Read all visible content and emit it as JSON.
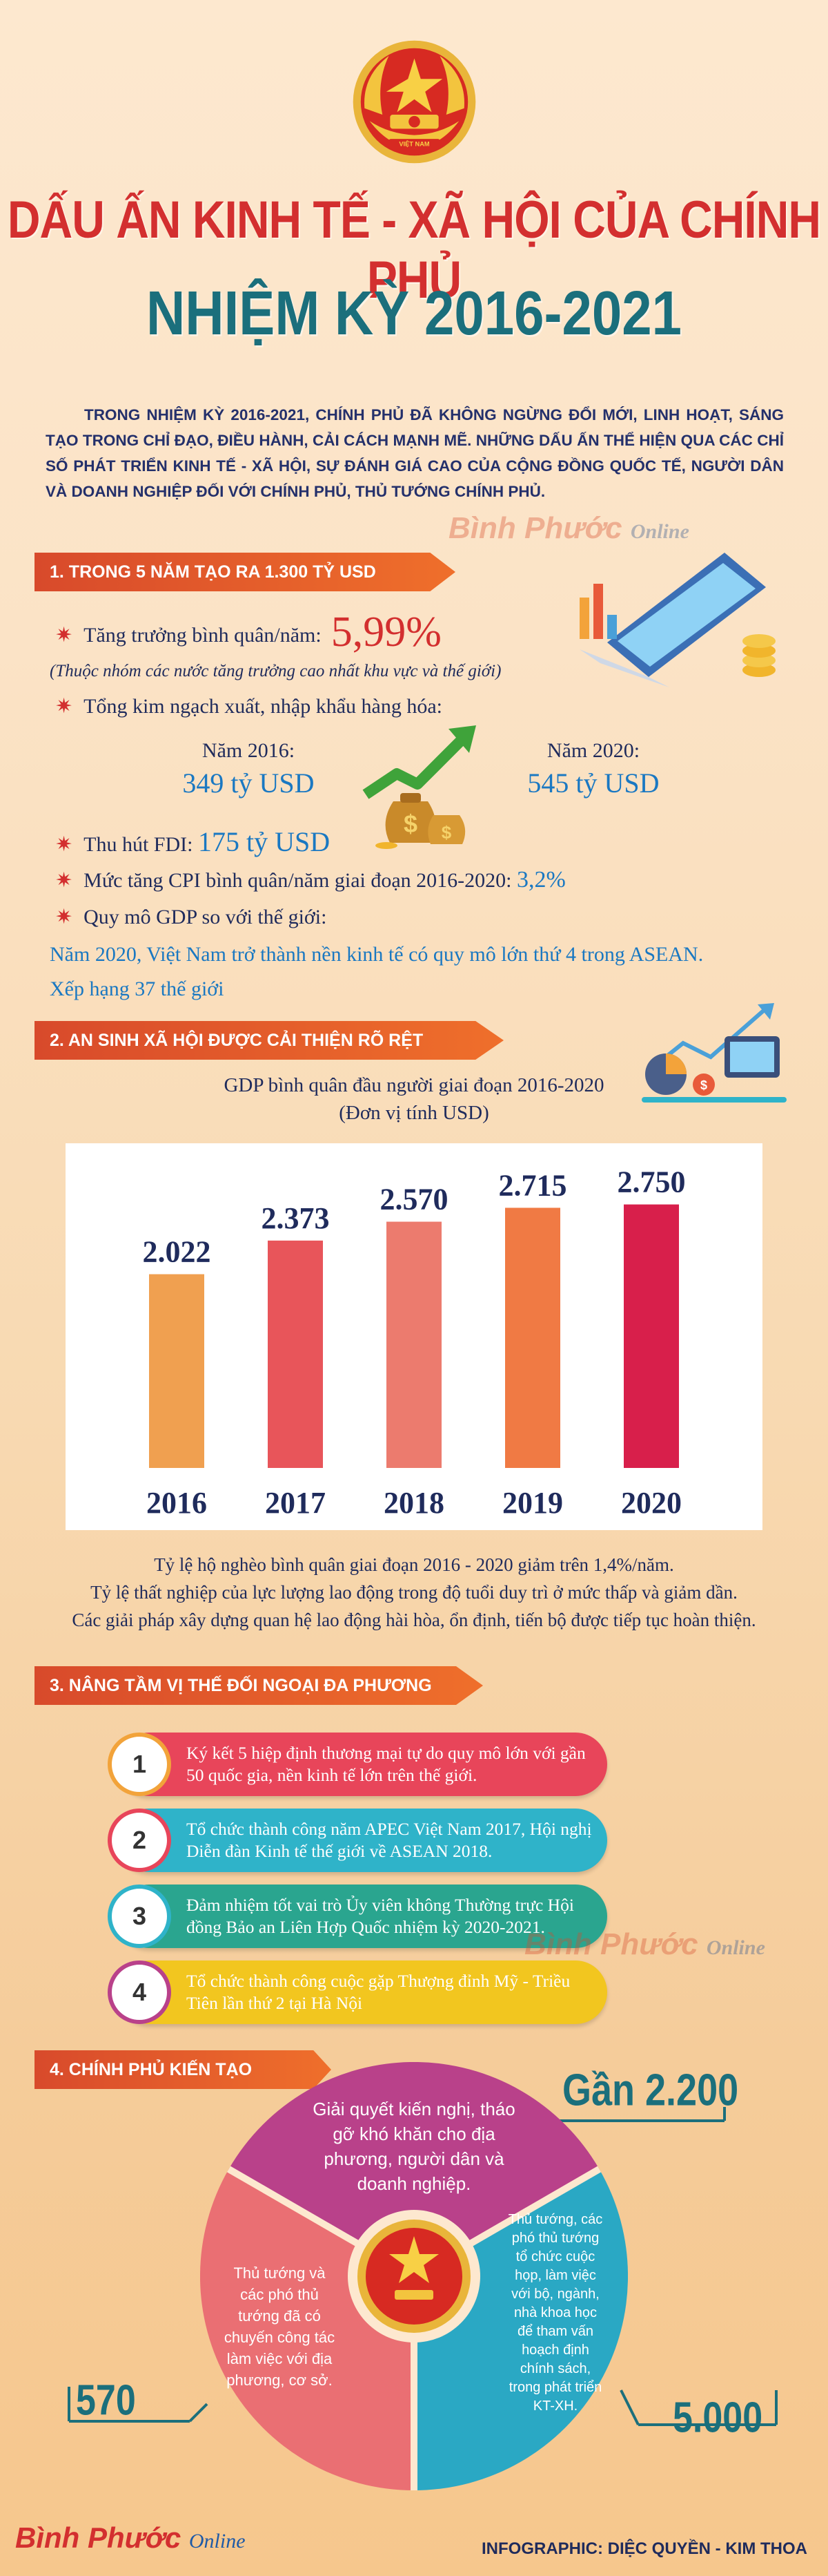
{
  "header": {
    "title_line1": "DẤU ẤN KINH TẾ - XÃ HỘI CỦA CHÍNH PHỦ",
    "title_line2": "NHIỆM KỲ 2016-2021",
    "emblem_label": "VIỆT NAM",
    "intro": "TRONG NHIỆM KỲ 2016-2021, CHÍNH PHỦ ĐÃ KHÔNG NGỪNG ĐỔI MỚI, LINH HOẠT, SÁNG TẠO TRONG CHỈ ĐẠO, ĐIỀU HÀNH, CẢI CÁCH MẠNH MẼ. NHỮNG DẤU ẤN THỂ HIỆN QUA CÁC CHỈ SỐ PHÁT TRIỂN KINH TẾ - XÃ HỘI, SỰ ĐÁNH GIÁ CAO CỦA CỘNG ĐỒNG QUỐC TẾ, NGƯỜI DÂN VÀ DOANH NGHIỆP ĐỐI VỚI CHÍNH PHỦ, THỦ TƯỚNG CHÍNH PHỦ."
  },
  "watermark": {
    "brand": "Bình Phước",
    "sub": "Online"
  },
  "section1": {
    "header": "1. TRONG 5 NĂM TẠO RA 1.300 TỶ USD",
    "growth_label": "Tăng trưởng bình quân/năm:",
    "growth_value": "5,99%",
    "growth_note": "(Thuộc nhóm các nước tăng trưởng cao nhất khu vực và thế giới)",
    "trade_label": "Tổng kim ngạch xuất, nhập khẩu hàng hóa:",
    "year_a_label": "Năm 2016:",
    "year_a_value": "349 tỷ USD",
    "year_b_label": "Năm 2020:",
    "year_b_value": "545 tỷ USD",
    "fdi_label": "Thu hút FDI:",
    "fdi_value": "175 tỷ USD",
    "cpi_label": "Mức tăng CPI bình quân/năm giai đoạn 2016-2020:",
    "cpi_value": "3,2%",
    "gdp_label": "Quy mô GDP so với thế giới:",
    "gdp_line1": "Năm 2020, Việt Nam trở thành nền kinh tế có quy mô lớn thứ 4 trong ASEAN.",
    "gdp_line2": "Xếp hạng 37 thế giới"
  },
  "section2": {
    "header": "2. AN SINH XÃ HỘI ĐƯỢC CẢI THIỆN RÕ RỆT",
    "caption_line1": "GDP bình quân đầu người giai đoạn 2016-2020",
    "caption_line2": "(Đơn vị tính USD)",
    "footnote_line1": "Tỷ lệ hộ nghèo bình quân giai đoạn 2016 - 2020 giảm trên 1,4%/năm.",
    "footnote_line2": "Tỷ lệ thất nghiệp của lực lượng lao động trong độ tuổi duy trì ở mức thấp và giảm dần.",
    "footnote_line3": "Các giải pháp xây dựng quan hệ lao động hài hòa, ổn định, tiến bộ được tiếp tục hoàn thiện."
  },
  "chart_data": {
    "type": "bar",
    "categories": [
      "2016",
      "2017",
      "2018",
      "2019",
      "2020"
    ],
    "values": [
      2022,
      2373,
      2570,
      2715,
      2750
    ],
    "value_labels": [
      "2.022",
      "2.373",
      "2.570",
      "2.715",
      "2.750"
    ],
    "colors": [
      "#f0a050",
      "#e8555a",
      "#ec7b6e",
      "#f07a44",
      "#d81f4b"
    ],
    "ylim": [
      0,
      3100
    ],
    "grid": false
  },
  "section3": {
    "header": "3. NÂNG TẦM VỊ THẾ ĐỐI NGOẠI ĐA PHƯƠNG",
    "items": [
      {
        "num": "1",
        "text": "Ký kết 5 hiệp định thương mại tự do quy mô lớn với gần 50 quốc gia, nền kinh tế lớn trên thế giới.",
        "color": "#e8455a"
      },
      {
        "num": "2",
        "text": "Tổ chức thành công năm APEC Việt Nam 2017, Hội nghị Diễn đàn Kinh tế thế giới về ASEAN 2018.",
        "color": "#2fb3c9"
      },
      {
        "num": "3",
        "text": "Đảm nhiệm tốt vai trò Ủy viên không Thường trực Hội đồng Bảo an Liên Hợp Quốc nhiệm kỳ 2020-2021.",
        "color": "#2aa58f"
      },
      {
        "num": "4",
        "text": "Tổ chức thành công cuộc gặp Thượng đỉnh Mỹ - Triều Tiên lần thứ 2 tại Hà Nội",
        "color": "#f2c61f"
      }
    ]
  },
  "section4": {
    "header": "4. CHÍNH PHỦ KIẾN TẠO",
    "top_count": "Gần 2.200",
    "left_count": "570",
    "right_count": "5.000",
    "segments": [
      {
        "text": "Giải quyết kiến nghị, tháo gỡ khó khăn cho địa phương, người dân và doanh nghiệp.",
        "color": "#b9418a"
      },
      {
        "text": "Thủ tướng, các phó thủ tướng tổ chức cuộc họp, làm việc với bộ, ngành, nhà khoa học để tham vấn hoạch định chính sách, trong phát triển KT-XH.",
        "color": "#2aa8c4"
      },
      {
        "text": "Thủ tướng và các phó thủ tướng đã có chuyến công tác làm việc với địa phương, cơ sở.",
        "color": "#ea6f73"
      }
    ]
  },
  "footer": {
    "brand": "Bình Phước",
    "brand_sub": "Online",
    "credit": "INFOGRAPHIC: DIỆC QUYỀN - KIM THOA"
  }
}
